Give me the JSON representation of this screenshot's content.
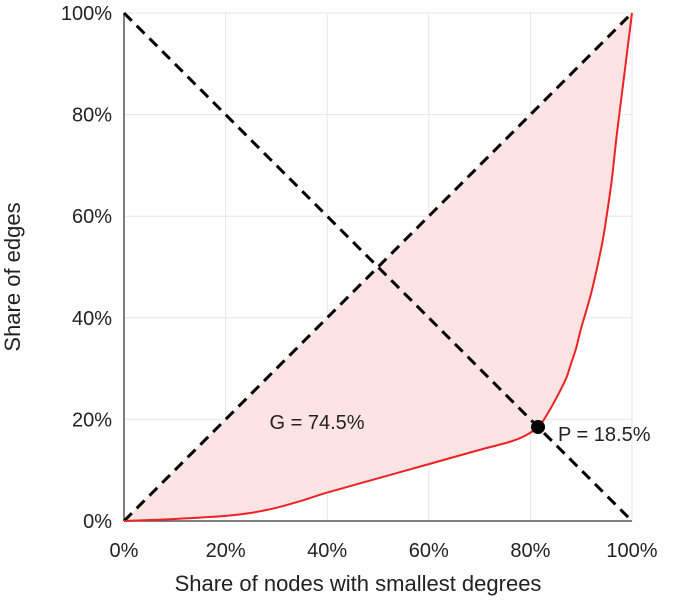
{
  "chart_data": {
    "type": "area",
    "title": "",
    "xlabel": "Share of nodes with smallest degrees",
    "ylabel": "Share of edges",
    "xlim": [
      0,
      100
    ],
    "ylim": [
      0,
      100
    ],
    "x_ticks": [
      0,
      20,
      40,
      60,
      80,
      100
    ],
    "y_ticks": [
      0,
      20,
      40,
      60,
      80,
      100
    ],
    "x_tick_labels": [
      "0%",
      "20%",
      "40%",
      "60%",
      "80%",
      "100%"
    ],
    "y_tick_labels": [
      "0%",
      "20%",
      "40%",
      "60%",
      "80%",
      "100%"
    ],
    "grid": true,
    "series": [
      {
        "x": [
          0,
          10,
          20,
          25,
          30,
          35,
          40,
          50,
          60,
          70,
          76,
          79,
          81.5,
          83,
          85,
          87,
          88,
          89,
          90,
          92,
          94,
          95,
          96,
          97,
          98,
          99,
          99.5,
          100
        ],
        "y": [
          0,
          0.4,
          1,
          1.6,
          2.6,
          4,
          5.6,
          8.4,
          11.2,
          14,
          15.6,
          16.8,
          18.5,
          20.5,
          24,
          28,
          31,
          34,
          38,
          45,
          54,
          60,
          67,
          76,
          84,
          92,
          96,
          100
        ],
        "color": "#ee2222",
        "fill": "#fde3e3"
      }
    ],
    "reference_lines": [
      {
        "x": [
          0,
          100
        ],
        "y": [
          0,
          100
        ],
        "style": "dashed",
        "color": "#000000"
      },
      {
        "x": [
          0,
          100
        ],
        "y": [
          100,
          0
        ],
        "style": "dashed",
        "color": "#000000"
      }
    ],
    "annotations": [
      {
        "text": "G = 74.5%",
        "x": 38,
        "y": 19.5
      },
      {
        "text": "P = 18.5%",
        "x": 81.5,
        "y": 18.5,
        "marker": true
      }
    ]
  }
}
